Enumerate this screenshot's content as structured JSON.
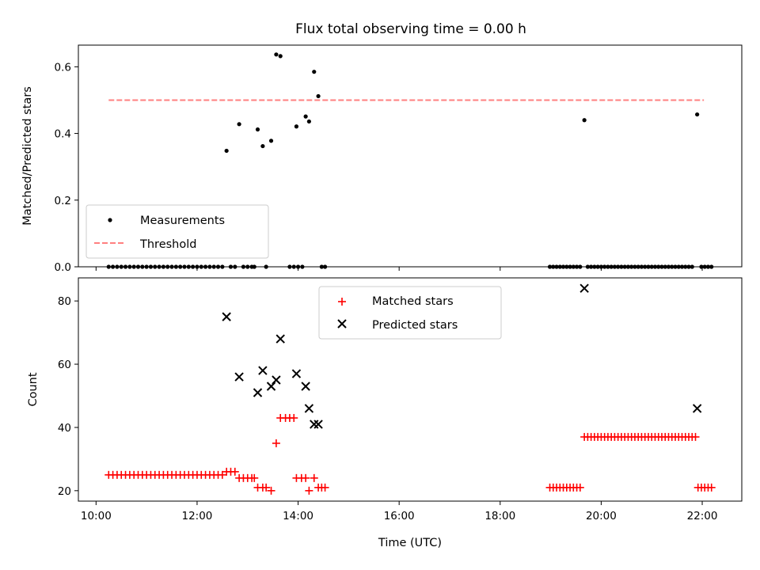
{
  "chart_data": [
    {
      "type": "scatter",
      "panel": "ratio",
      "title": "Flux total observing time = 0.00 h",
      "xlabel": "",
      "ylabel": "Matched/Predicted stars",
      "xlim": [
        "09:39",
        "22:47"
      ],
      "ylim": [
        0,
        0.665
      ],
      "yticks": [
        0.0,
        0.2,
        0.4,
        0.6
      ],
      "ytick_labels": [
        "0.0",
        "0.2",
        "0.4",
        "0.6"
      ],
      "legend_position": "lower-left",
      "series": [
        {
          "name": "Measurements",
          "marker": "dot",
          "color": "#000000",
          "points": [
            [
              "12:35",
              0.348
            ],
            [
              "12:50",
              0.428
            ],
            [
              "13:12",
              0.412
            ],
            [
              "13:18",
              0.362
            ],
            [
              "13:28",
              0.378
            ],
            [
              "13:34",
              0.637
            ],
            [
              "13:39",
              0.632
            ],
            [
              "13:58",
              0.421
            ],
            [
              "14:09",
              0.451
            ],
            [
              "14:13",
              0.436
            ],
            [
              "14:19",
              0.585
            ],
            [
              "14:24",
              0.512
            ],
            [
              "19:40",
              0.44
            ],
            [
              "21:54",
              0.457
            ],
            [
              "10:15",
              0
            ],
            [
              "10:20",
              0
            ],
            [
              "10:25",
              0
            ],
            [
              "10:30",
              0
            ],
            [
              "10:35",
              0
            ],
            [
              "10:40",
              0
            ],
            [
              "10:45",
              0
            ],
            [
              "10:50",
              0
            ],
            [
              "10:55",
              0
            ],
            [
              "11:00",
              0
            ],
            [
              "11:05",
              0
            ],
            [
              "11:10",
              0
            ],
            [
              "11:15",
              0
            ],
            [
              "11:20",
              0
            ],
            [
              "11:25",
              0
            ],
            [
              "11:30",
              0
            ],
            [
              "11:35",
              0
            ],
            [
              "11:40",
              0
            ],
            [
              "11:45",
              0
            ],
            [
              "11:50",
              0
            ],
            [
              "11:55",
              0
            ],
            [
              "12:00",
              0
            ],
            [
              "12:05",
              0
            ],
            [
              "12:10",
              0
            ],
            [
              "12:15",
              0
            ],
            [
              "12:20",
              0
            ],
            [
              "12:25",
              0
            ],
            [
              "12:30",
              0
            ],
            [
              "12:40",
              0
            ],
            [
              "12:45",
              0
            ],
            [
              "12:55",
              0
            ],
            [
              "13:00",
              0
            ],
            [
              "13:05",
              0
            ],
            [
              "13:08",
              0
            ],
            [
              "13:22",
              0
            ],
            [
              "13:50",
              0
            ],
            [
              "13:55",
              0
            ],
            [
              "14:00",
              0
            ],
            [
              "14:05",
              0
            ],
            [
              "14:28",
              0
            ],
            [
              "14:32",
              0
            ],
            [
              "18:59",
              0
            ],
            [
              "19:03",
              0
            ],
            [
              "19:07",
              0
            ],
            [
              "19:11",
              0
            ],
            [
              "19:15",
              0
            ],
            [
              "19:19",
              0
            ],
            [
              "19:23",
              0
            ],
            [
              "19:27",
              0
            ],
            [
              "19:31",
              0
            ],
            [
              "19:35",
              0
            ],
            [
              "19:44",
              0
            ],
            [
              "19:48",
              0
            ],
            [
              "19:52",
              0
            ],
            [
              "19:56",
              0
            ],
            [
              "20:00",
              0
            ],
            [
              "20:04",
              0
            ],
            [
              "20:08",
              0
            ],
            [
              "20:12",
              0
            ],
            [
              "20:16",
              0
            ],
            [
              "20:20",
              0
            ],
            [
              "20:24",
              0
            ],
            [
              "20:28",
              0
            ],
            [
              "20:32",
              0
            ],
            [
              "20:36",
              0
            ],
            [
              "20:40",
              0
            ],
            [
              "20:44",
              0
            ],
            [
              "20:48",
              0
            ],
            [
              "20:52",
              0
            ],
            [
              "20:56",
              0
            ],
            [
              "21:00",
              0
            ],
            [
              "21:04",
              0
            ],
            [
              "21:08",
              0
            ],
            [
              "21:12",
              0
            ],
            [
              "21:16",
              0
            ],
            [
              "21:20",
              0
            ],
            [
              "21:24",
              0
            ],
            [
              "21:28",
              0
            ],
            [
              "21:32",
              0
            ],
            [
              "21:36",
              0
            ],
            [
              "21:40",
              0
            ],
            [
              "21:44",
              0
            ],
            [
              "21:48",
              0
            ],
            [
              "21:59",
              0
            ],
            [
              "22:03",
              0
            ],
            [
              "22:07",
              0
            ],
            [
              "22:11",
              0
            ]
          ]
        },
        {
          "name": "Threshold",
          "style": "dashed-line",
          "color": "#ff7f7f",
          "points": [
            [
              "10:15",
              0.5
            ],
            [
              "22:02",
              0.5
            ]
          ]
        }
      ]
    },
    {
      "type": "scatter",
      "panel": "counts",
      "title": "",
      "xlabel": "Time (UTC)",
      "ylabel": "Count",
      "xlim": [
        "09:39",
        "22:47"
      ],
      "ylim": [
        16.7,
        87.3
      ],
      "yticks": [
        20,
        40,
        60,
        80
      ],
      "ytick_labels": [
        "20",
        "40",
        "60",
        "80"
      ],
      "xticks": [
        "10:00",
        "12:00",
        "14:00",
        "16:00",
        "18:00",
        "20:00",
        "22:00"
      ],
      "xtick_labels": [
        "10:00",
        "12:00",
        "14:00",
        "16:00",
        "18:00",
        "20:00",
        "22:00"
      ],
      "legend_position": "top-center",
      "series": [
        {
          "name": "Matched stars",
          "marker": "plus",
          "color": "#ff0000",
          "points": [
            [
              "10:15",
              25
            ],
            [
              "10:20",
              25
            ],
            [
              "10:25",
              25
            ],
            [
              "10:30",
              25
            ],
            [
              "10:35",
              25
            ],
            [
              "10:40",
              25
            ],
            [
              "10:45",
              25
            ],
            [
              "10:50",
              25
            ],
            [
              "10:55",
              25
            ],
            [
              "11:00",
              25
            ],
            [
              "11:05",
              25
            ],
            [
              "11:10",
              25
            ],
            [
              "11:15",
              25
            ],
            [
              "11:20",
              25
            ],
            [
              "11:25",
              25
            ],
            [
              "11:30",
              25
            ],
            [
              "11:35",
              25
            ],
            [
              "11:40",
              25
            ],
            [
              "11:45",
              25
            ],
            [
              "11:50",
              25
            ],
            [
              "11:55",
              25
            ],
            [
              "12:00",
              25
            ],
            [
              "12:05",
              25
            ],
            [
              "12:10",
              25
            ],
            [
              "12:15",
              25
            ],
            [
              "12:20",
              25
            ],
            [
              "12:25",
              25
            ],
            [
              "12:30",
              25
            ],
            [
              "12:35",
              26
            ],
            [
              "12:40",
              26
            ],
            [
              "12:45",
              26
            ],
            [
              "12:50",
              24
            ],
            [
              "12:55",
              24
            ],
            [
              "13:00",
              24
            ],
            [
              "13:05",
              24
            ],
            [
              "13:08",
              24
            ],
            [
              "13:12",
              21
            ],
            [
              "13:18",
              21
            ],
            [
              "13:22",
              21
            ],
            [
              "13:28",
              20
            ],
            [
              "13:34",
              35
            ],
            [
              "13:39",
              43
            ],
            [
              "13:45",
              43
            ],
            [
              "13:50",
              43
            ],
            [
              "13:55",
              43
            ],
            [
              "13:58",
              24
            ],
            [
              "14:04",
              24
            ],
            [
              "14:09",
              24
            ],
            [
              "14:13",
              20
            ],
            [
              "14:19",
              24
            ],
            [
              "14:24",
              21
            ],
            [
              "14:28",
              21
            ],
            [
              "14:32",
              21
            ],
            [
              "18:59",
              21
            ],
            [
              "19:03",
              21
            ],
            [
              "19:07",
              21
            ],
            [
              "19:11",
              21
            ],
            [
              "19:15",
              21
            ],
            [
              "19:19",
              21
            ],
            [
              "19:23",
              21
            ],
            [
              "19:27",
              21
            ],
            [
              "19:31",
              21
            ],
            [
              "19:35",
              21
            ],
            [
              "19:40",
              37
            ],
            [
              "19:44",
              37
            ],
            [
              "19:48",
              37
            ],
            [
              "19:52",
              37
            ],
            [
              "19:56",
              37
            ],
            [
              "20:00",
              37
            ],
            [
              "20:04",
              37
            ],
            [
              "20:08",
              37
            ],
            [
              "20:12",
              37
            ],
            [
              "20:16",
              37
            ],
            [
              "20:20",
              37
            ],
            [
              "20:24",
              37
            ],
            [
              "20:28",
              37
            ],
            [
              "20:32",
              37
            ],
            [
              "20:36",
              37
            ],
            [
              "20:40",
              37
            ],
            [
              "20:44",
              37
            ],
            [
              "20:48",
              37
            ],
            [
              "20:52",
              37
            ],
            [
              "20:56",
              37
            ],
            [
              "21:00",
              37
            ],
            [
              "21:04",
              37
            ],
            [
              "21:08",
              37
            ],
            [
              "21:12",
              37
            ],
            [
              "21:16",
              37
            ],
            [
              "21:20",
              37
            ],
            [
              "21:24",
              37
            ],
            [
              "21:28",
              37
            ],
            [
              "21:32",
              37
            ],
            [
              "21:36",
              37
            ],
            [
              "21:40",
              37
            ],
            [
              "21:44",
              37
            ],
            [
              "21:48",
              37
            ],
            [
              "21:52",
              37
            ],
            [
              "21:55",
              21
            ],
            [
              "21:59",
              21
            ],
            [
              "22:03",
              21
            ],
            [
              "22:07",
              21
            ],
            [
              "22:11",
              21
            ]
          ]
        },
        {
          "name": "Predicted stars",
          "marker": "x",
          "color": "#000000",
          "points": [
            [
              "12:35",
              75
            ],
            [
              "12:50",
              56
            ],
            [
              "13:12",
              51
            ],
            [
              "13:18",
              58
            ],
            [
              "13:28",
              53
            ],
            [
              "13:34",
              55
            ],
            [
              "13:39",
              68
            ],
            [
              "13:58",
              57
            ],
            [
              "14:09",
              53
            ],
            [
              "14:13",
              46
            ],
            [
              "14:19",
              41
            ],
            [
              "14:24",
              41
            ],
            [
              "19:40",
              84
            ],
            [
              "21:54",
              46
            ]
          ]
        }
      ]
    }
  ]
}
